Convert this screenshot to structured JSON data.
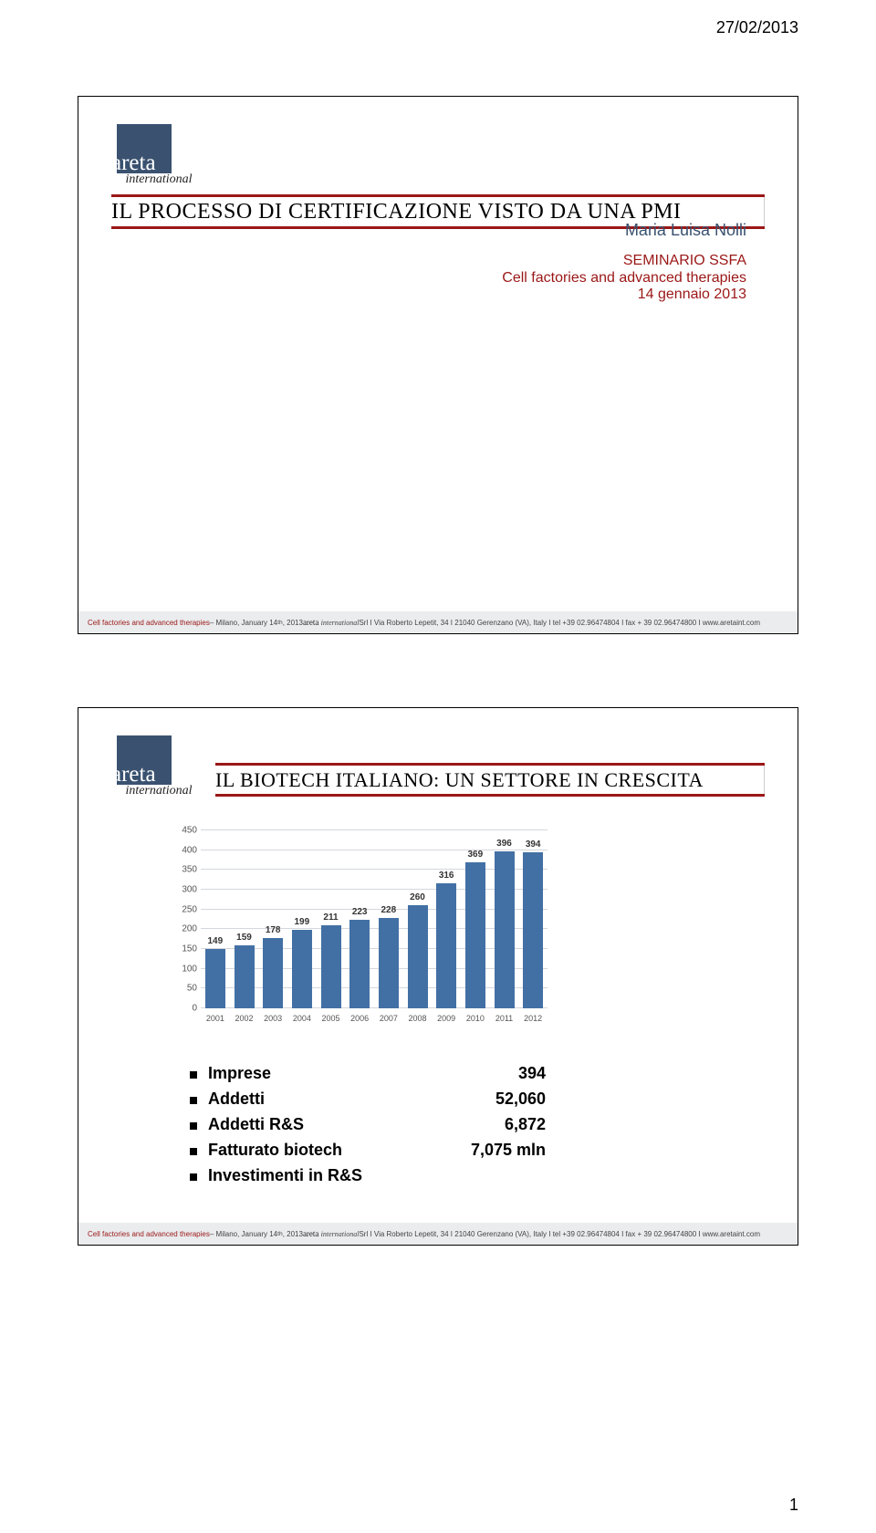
{
  "header_date": "27/02/2013",
  "page_number": "1",
  "footer": {
    "cf": "Cell factories and advanced therapies",
    "dash": "– Milano, January 14",
    "th": "th",
    "yr": ", 2013 ",
    "brand": "areta",
    "intl": "international",
    "rest": " Srl  I  Via Roberto Lepetit, 34  I  21040 Gerenzano (VA), Italy  I  tel +39 02.96474804  I  fax + 39 02.96474800  I  www.aretaint.com"
  },
  "logo": {
    "brand": "areta",
    "sub": "international"
  },
  "slide1": {
    "title": "IL PROCESSO DI CERTIFICAZIONE VISTO DA UNA PMI",
    "author": "Maria Luisa Nolli",
    "seminar": "SEMINARIO SSFA",
    "cf_line": "Cell factories and advanced therapies",
    "sem_date": "14 gennaio 2013"
  },
  "slide2": {
    "title": "IL BIOTECH ITALIANO: UN SETTORE IN CRESCITA",
    "chart": {
      "type": "bar",
      "ylim_max": 450,
      "ytick_step": 50,
      "bar_color": "#4270a4",
      "grid_color": "#d3d7dd",
      "categories": [
        "2001",
        "2002",
        "2003",
        "2004",
        "2005",
        "2006",
        "2007",
        "2008",
        "2009",
        "2010",
        "2011",
        "2012"
      ],
      "values": [
        149,
        159,
        178,
        199,
        211,
        223,
        228,
        260,
        316,
        369,
        396,
        394
      ]
    },
    "facts": [
      {
        "label": "Imprese",
        "value": "394"
      },
      {
        "label": "Addetti",
        "value": "52,060"
      },
      {
        "label": "Addetti R&S",
        "value": "6,872"
      },
      {
        "label": "Fatturato biotech",
        "value": "7,075 mln"
      },
      {
        "label": "Investimenti in R&S",
        "value": ""
      }
    ]
  }
}
